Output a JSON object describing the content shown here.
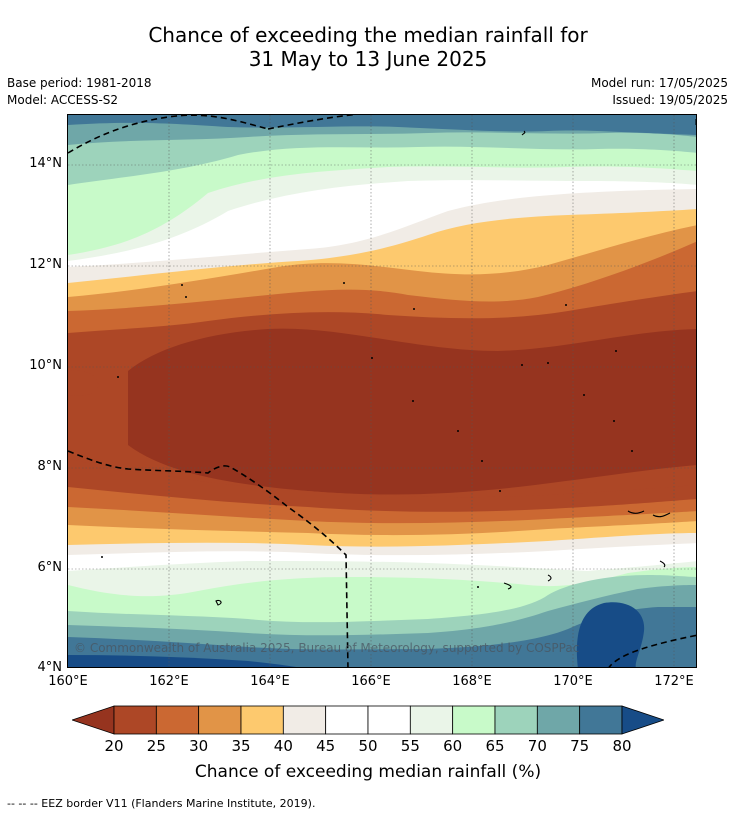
{
  "title": {
    "line1": "Chance of exceeding the median rainfall for",
    "line2": "31 May to 13 June 2025"
  },
  "meta": {
    "base_period": "Base period: 1981-2018",
    "model": "Model: ACCESS-S2",
    "model_run": "Model run: 17/05/2025",
    "issued": "Issued: 19/05/2025"
  },
  "map": {
    "lat_labels": [
      "14°N",
      "12°N",
      "10°N",
      "8°N",
      "6°N",
      "4°N"
    ],
    "lon_labels": [
      "160°E",
      "162°E",
      "164°E",
      "166°E",
      "168°E",
      "170°E",
      "172°E"
    ],
    "copyright": "© Commonwealth of Australia 2025, Bureau of Meteorology, supported by COSPPac"
  },
  "colorbar": {
    "ticks": [
      "20",
      "25",
      "30",
      "35",
      "40",
      "45",
      "50",
      "55",
      "60",
      "65",
      "70",
      "75",
      "80"
    ],
    "colors": [
      "#ad4726",
      "#cb6832",
      "#e19447",
      "#fdc96e",
      "#f1ece6",
      "#ffffff",
      "#ffffff",
      "#eaf5e8",
      "#c8fac9",
      "#9dd3bb",
      "#6fa7a8",
      "#417797"
    ],
    "low_color": "#96341f",
    "high_color": "#174c87",
    "label": "Chance of exceeding median rainfall (%)"
  },
  "footnote": "--  --  -- EEZ border V11 (Flanders Marine Institute, 2019)."
}
